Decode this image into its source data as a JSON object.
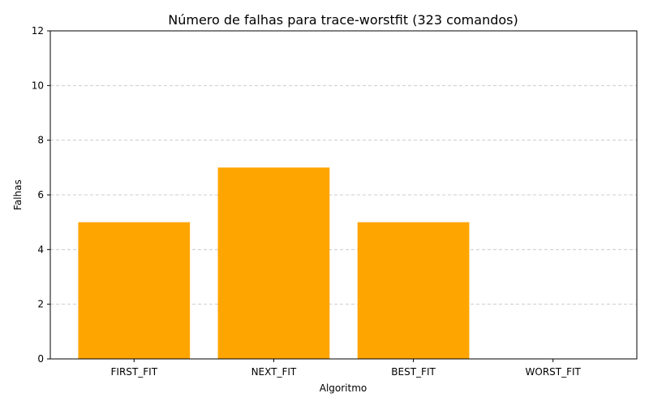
{
  "chart_data": {
    "type": "bar",
    "title": "Número de falhas para trace-worstfit (323 comandos)",
    "xlabel": "Algoritmo",
    "ylabel": "Falhas",
    "categories": [
      "FIRST_FIT",
      "NEXT_FIT",
      "BEST_FIT",
      "WORST_FIT"
    ],
    "values": [
      5,
      7,
      5,
      0
    ],
    "ylim": [
      0,
      12
    ],
    "yticks": [
      0,
      2,
      4,
      6,
      8,
      10,
      12
    ],
    "grid": "y-axis dashed",
    "bar_color": "#ffa500"
  }
}
